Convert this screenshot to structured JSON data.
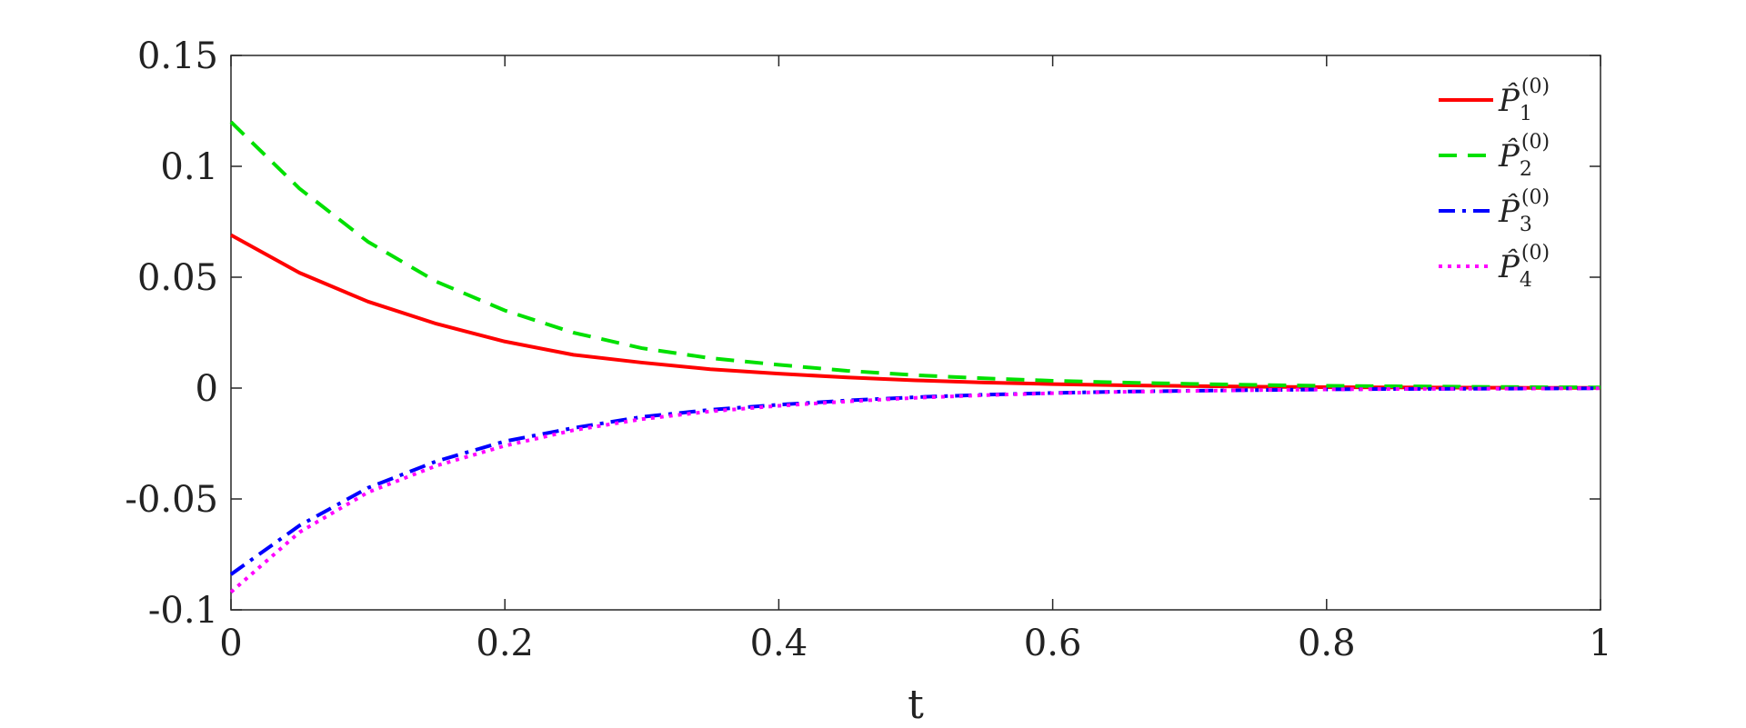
{
  "chart_data": {
    "type": "line",
    "title": "",
    "xlabel": "t",
    "ylabel": "",
    "xlim": [
      0,
      1
    ],
    "ylim": [
      -0.1,
      0.15
    ],
    "x_ticks": [
      "0",
      "0.2",
      "0.4",
      "0.6",
      "0.8",
      "1"
    ],
    "y_ticks": [
      "-0.1",
      "-0.05",
      "0",
      "0.05",
      "0.1",
      "0.15"
    ],
    "grid": false,
    "legend_position": "top-right",
    "x": [
      0,
      0.05,
      0.1,
      0.15,
      0.2,
      0.25,
      0.3,
      0.35,
      0.4,
      0.45,
      0.5,
      0.55,
      0.6,
      0.65,
      0.7,
      0.75,
      0.8,
      0.85,
      0.9,
      0.95,
      1.0
    ],
    "series": [
      {
        "name": "P̂1(0)",
        "legend": {
          "base": "P̂",
          "sub": "1",
          "sup": "(0)"
        },
        "color": "#ff0000",
        "dash": "solid",
        "values": [
          0.069,
          0.052,
          0.039,
          0.029,
          0.021,
          0.015,
          0.0115,
          0.0085,
          0.0065,
          0.0048,
          0.0035,
          0.0025,
          0.0018,
          0.0013,
          0.0009,
          0.0006,
          0.0004,
          0.0003,
          0.0002,
          0.0001,
          0.0001
        ]
      },
      {
        "name": "P̂2(0)",
        "legend": {
          "base": "P̂",
          "sub": "2",
          "sup": "(0)"
        },
        "color": "#00e000",
        "dash": "dashed",
        "values": [
          0.12,
          0.09,
          0.066,
          0.048,
          0.035,
          0.025,
          0.018,
          0.0135,
          0.0105,
          0.0078,
          0.0058,
          0.0044,
          0.0033,
          0.0025,
          0.0019,
          0.0014,
          0.001,
          0.0008,
          0.0006,
          0.0004,
          0.0003
        ]
      },
      {
        "name": "P̂3(0)",
        "legend": {
          "base": "P̂",
          "sub": "3",
          "sup": "(0)"
        },
        "color": "#0000ff",
        "dash": "dashdot",
        "values": [
          -0.084,
          -0.062,
          -0.045,
          -0.033,
          -0.024,
          -0.018,
          -0.013,
          -0.0098,
          -0.0075,
          -0.0056,
          -0.0041,
          -0.003,
          -0.0022,
          -0.0016,
          -0.0012,
          -0.0009,
          -0.0006,
          -0.0004,
          -0.0003,
          -0.0002,
          -0.0001
        ]
      },
      {
        "name": "P̂4(0)",
        "legend": {
          "base": "P̂",
          "sub": "4",
          "sup": "(0)"
        },
        "color": "#ff00ff",
        "dash": "dotted",
        "values": [
          -0.092,
          -0.065,
          -0.047,
          -0.035,
          -0.026,
          -0.019,
          -0.014,
          -0.0105,
          -0.008,
          -0.006,
          -0.0044,
          -0.0032,
          -0.0023,
          -0.0017,
          -0.0013,
          -0.0009,
          -0.0006,
          -0.0004,
          -0.0003,
          -0.0002,
          -0.0001
        ]
      }
    ]
  }
}
